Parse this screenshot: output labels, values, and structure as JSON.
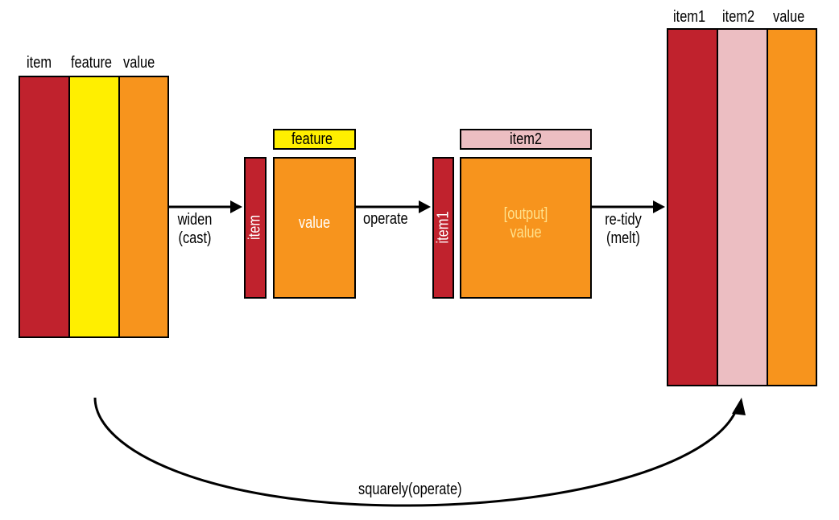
{
  "colors": {
    "red": "#c0222d",
    "yellow": "#ffef00",
    "orange": "#f7941d",
    "pink": "#ecbec2",
    "line": "#000000"
  },
  "left_table": {
    "col1": "item",
    "col2": "feature",
    "col3": "value"
  },
  "step1": {
    "top_label": "feature",
    "side_label": "item",
    "body": "value"
  },
  "step2": {
    "top_label": "item2",
    "side_label": "item1",
    "body_line1": "[output]",
    "body_line2": "value"
  },
  "right_table": {
    "col1": "item1",
    "col2": "item2",
    "col3": "value"
  },
  "arrows": {
    "widen_line1": "widen",
    "widen_line2": "(cast)",
    "operate": "operate",
    "retidy_line1": "re-tidy",
    "retidy_line2": "(melt)",
    "bottom": "squarely(operate)"
  }
}
